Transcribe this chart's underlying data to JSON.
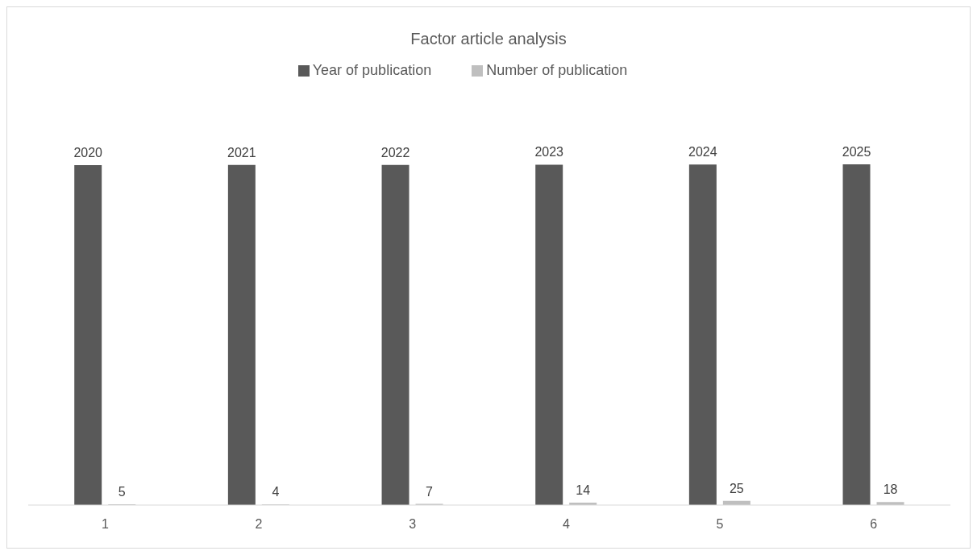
{
  "chart_data": {
    "type": "bar",
    "title": "Factor article analysis",
    "categories": [
      "1",
      "2",
      "3",
      "4",
      "5",
      "6"
    ],
    "series": [
      {
        "name": "Year of publication",
        "color": "#595959",
        "values": [
          2020,
          2021,
          2022,
          2023,
          2024,
          2025
        ]
      },
      {
        "name": "Number of publication",
        "color": "#bfbfbf",
        "values": [
          5,
          4,
          7,
          14,
          25,
          18
        ]
      }
    ],
    "tick_labels": "x",
    "legend": "top",
    "data_labels": true
  }
}
